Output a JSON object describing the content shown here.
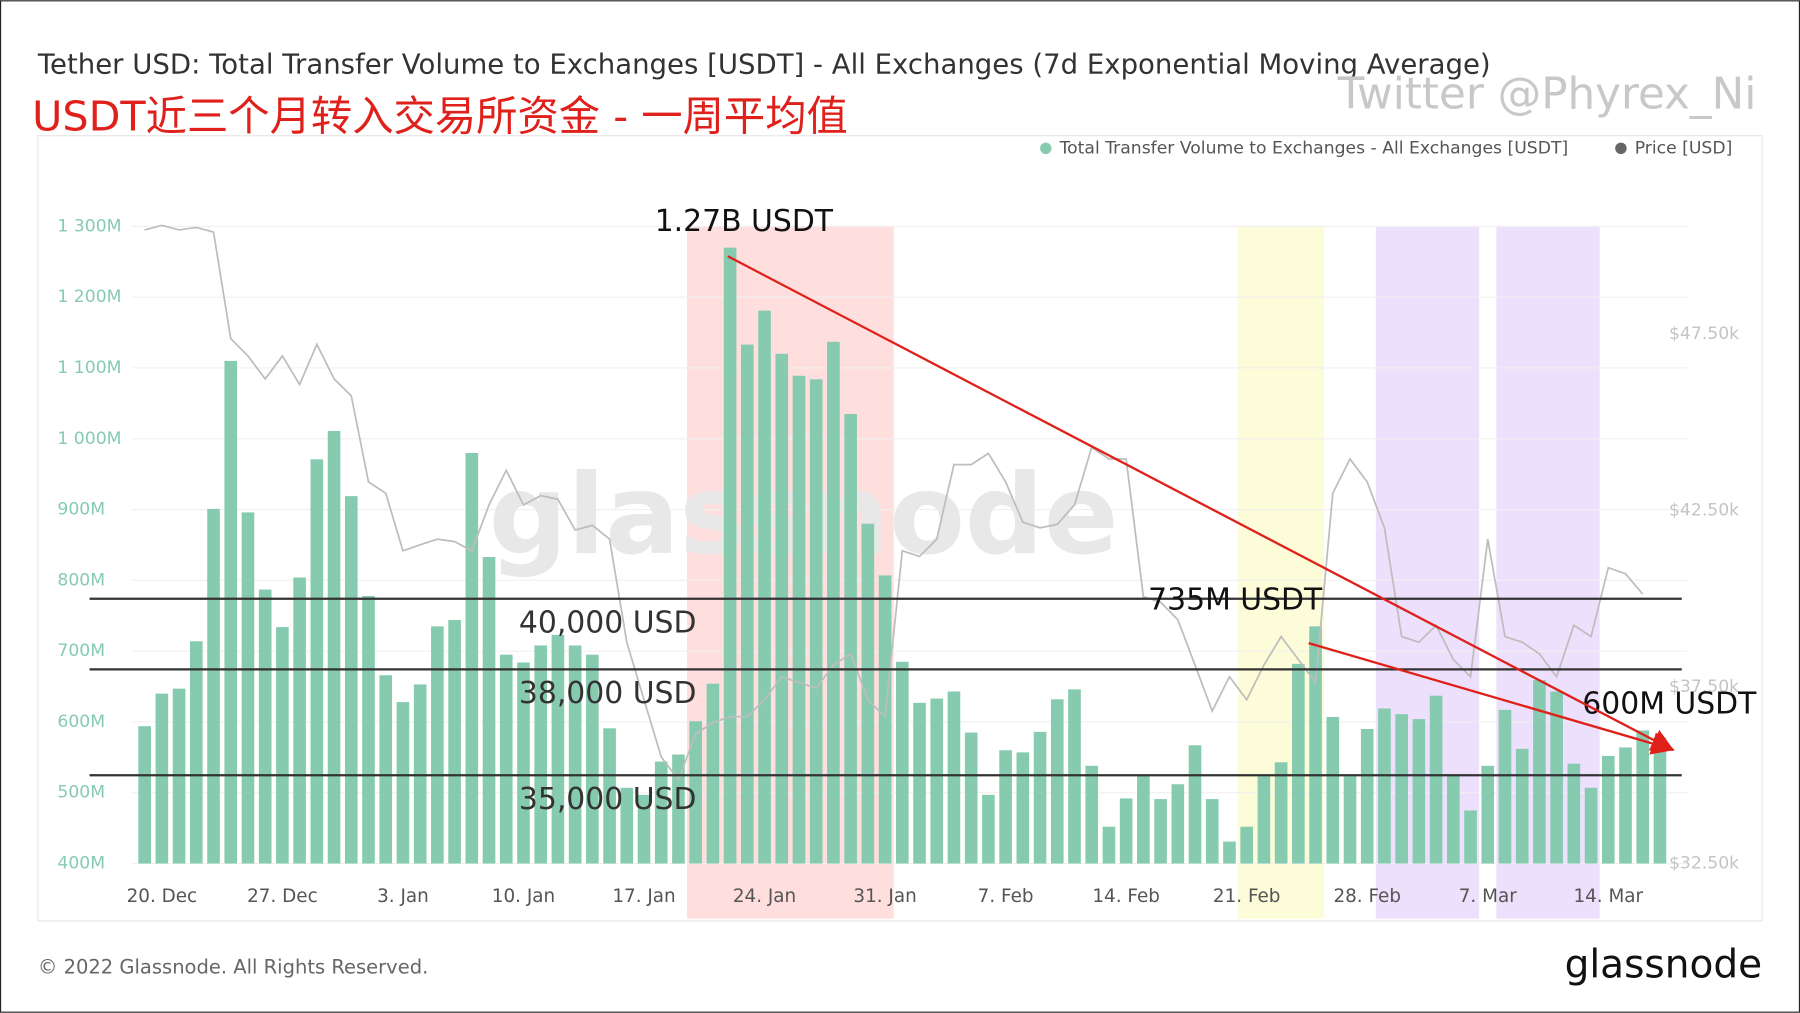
{
  "chart_data": {
    "type": "bar",
    "title": "Tether USD: Total Transfer Volume to Exchanges [USDT] - All Exchanges (7d Exponential Moving Average)",
    "subtitle": "USDT近三个月转入交易所资金 - 一周平均值",
    "credit": "Twitter @Phyrex_Ni",
    "watermark": "glassnode",
    "copyright": "© 2022 Glassnode. All Rights Reserved.",
    "logo": "glassnode",
    "categories": [
      null,
      "20. Dec",
      null,
      null,
      null,
      null,
      null,
      null,
      "27. Dec",
      null,
      null,
      null,
      null,
      null,
      null,
      "3. Jan",
      null,
      null,
      null,
      null,
      null,
      null,
      "10. Jan",
      null,
      null,
      null,
      null,
      null,
      null,
      "17. Jan",
      null,
      null,
      null,
      null,
      null,
      null,
      "24. Jan",
      null,
      null,
      null,
      null,
      null,
      null,
      "31. Jan",
      null,
      null,
      null,
      null,
      null,
      null,
      "7. Feb",
      null,
      null,
      null,
      null,
      null,
      null,
      "14. Feb",
      null,
      null,
      null,
      null,
      null,
      null,
      "21. Feb",
      null,
      null,
      null,
      null,
      null,
      null,
      "28. Feb",
      null,
      null,
      null,
      null,
      null,
      null,
      "7. Mar",
      null,
      null,
      null,
      null,
      null,
      null,
      "14. Mar",
      null,
      null,
      null
    ],
    "series": [
      {
        "name": "Total Transfer Volume to Exchanges - All Exchanges [USDT]",
        "color": "#86cbb0",
        "values": [
          594,
          640,
          647,
          714,
          901,
          1110,
          896,
          787,
          734,
          804,
          971,
          1011,
          919,
          778,
          666,
          628,
          653,
          735,
          744,
          980,
          833,
          695,
          684,
          708,
          723,
          708,
          695,
          591,
          507,
          497,
          544,
          554,
          601,
          654,
          1270,
          1133,
          1181,
          1120,
          1089,
          1084,
          1137,
          1035,
          880,
          807,
          685,
          627,
          633,
          643,
          585,
          497,
          560,
          557,
          586,
          632,
          646,
          538,
          452,
          492,
          525,
          491,
          512,
          567,
          491,
          431,
          452,
          523,
          543,
          682,
          735,
          607,
          523,
          590,
          619,
          611,
          604,
          637,
          525,
          475,
          538,
          617,
          562,
          659,
          643,
          541,
          507,
          552,
          564,
          588,
          578
        ]
      },
      {
        "name": "Price [USD]",
        "color": "#bdbdbd",
        "axis": "y2",
        "values": [
          50.45,
          50.58,
          50.45,
          50.52,
          50.39,
          47.37,
          46.88,
          46.23,
          46.88,
          46.07,
          47.21,
          46.23,
          45.75,
          43.31,
          42.99,
          41.36,
          41.53,
          41.69,
          41.62,
          41.36,
          42.66,
          43.64,
          42.66,
          42.92,
          42.82,
          41.95,
          42.08,
          41.69,
          38.77,
          37.14,
          35.52,
          34.87,
          36.17,
          36.49,
          36.66,
          36.66,
          37.14,
          37.79,
          37.63,
          37.47,
          38.12,
          38.44,
          37.14,
          36.66,
          41.36,
          41.2,
          41.69,
          43.8,
          43.8,
          44.12,
          43.31,
          42.17,
          42.01,
          42.11,
          42.66,
          44.29,
          43.96,
          43.96,
          40.06,
          39.9,
          39.41,
          38.12,
          36.82,
          37.79,
          37.14,
          38.12,
          38.93,
          38.28,
          37.63,
          42.99,
          43.96,
          43.31,
          42.01,
          38.93,
          38.77,
          39.25,
          38.28,
          37.79,
          41.69,
          38.93,
          38.77,
          38.44,
          37.79,
          39.25,
          38.93,
          40.88,
          40.71,
          40.13,
          null
        ]
      }
    ],
    "ylim": [
      400,
      1300
    ],
    "yticks": [
      {
        "value": 400,
        "label": "400M"
      },
      {
        "value": 500,
        "label": "500M"
      },
      {
        "value": 600,
        "label": "600M"
      },
      {
        "value": 700,
        "label": "700M"
      },
      {
        "value": 800,
        "label": "800M"
      },
      {
        "value": 900,
        "label": "900M"
      },
      {
        "value": 1000,
        "label": "1 000M"
      },
      {
        "value": 1100,
        "label": "1 100M"
      },
      {
        "value": 1200,
        "label": "1 200M"
      },
      {
        "value": 1300,
        "label": "1 300M"
      }
    ],
    "y2lim": [
      32.5,
      50.55
    ],
    "y2ticks": [
      {
        "value": 32.5,
        "label": "$32.50k"
      },
      {
        "value": 37.5,
        "label": "$37.50k"
      },
      {
        "value": 42.5,
        "label": "$42.50k"
      },
      {
        "value": 47.5,
        "label": "$47.50k"
      }
    ],
    "grid": true,
    "legend": "top-right",
    "levels": [
      {
        "value": 40,
        "label": "40,000 USD"
      },
      {
        "value": 38,
        "label": "38,000 USD"
      },
      {
        "value": 35,
        "label": "35,000 USD"
      }
    ],
    "highlights": [
      {
        "from": 32,
        "to": 43,
        "color": "#ffd6d6"
      },
      {
        "from": 64,
        "to": 68,
        "color": "#fbfbd0"
      },
      {
        "from": 72,
        "to": 77,
        "color": "#e9d8fb"
      },
      {
        "from": 79,
        "to": 84,
        "color": "#e9d8fb"
      }
    ],
    "annotations": [
      {
        "text": "1.27B USDT",
        "index": 34,
        "value": 1270
      },
      {
        "text": "735M USDT",
        "index": 68,
        "value": 735
      },
      {
        "text": "600M USDT",
        "index": 87,
        "value": 588
      }
    ]
  }
}
